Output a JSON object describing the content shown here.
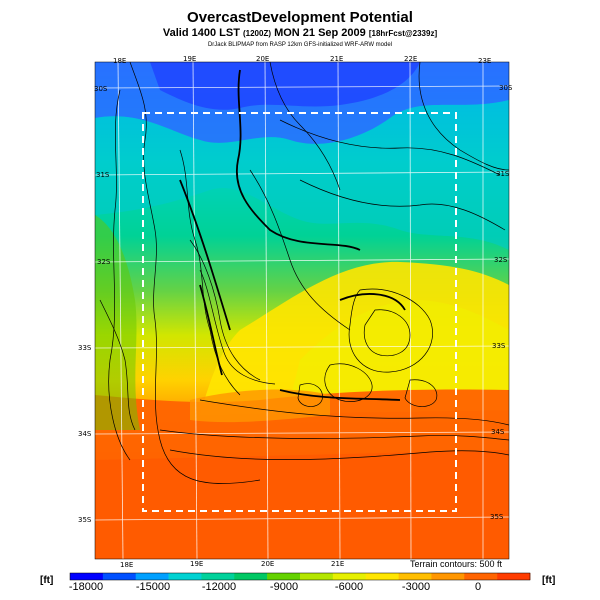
{
  "title": "OvercastDevelopment Potential",
  "subtitle_main": "Valid 1400 LST",
  "subtitle_small": "(1200Z)",
  "subtitle_date": "MON 21 Sep 2009",
  "subtitle_fcst": "[18hrFcst@2339z]",
  "credit": "DrJack BLIPMAP from RASP 12km GFS-initialized WRF-ARW model",
  "longitudes_top": [
    "18E",
    "19E",
    "20E",
    "21E",
    "22E",
    "23E"
  ],
  "longitudes_bottom": [
    "18E",
    "19E",
    "20E",
    "21E"
  ],
  "latitudes_left": [
    "30S",
    "31S",
    "32S",
    "33S",
    "34S",
    "35S"
  ],
  "latitudes_right": [
    "30S",
    "31S",
    "32S",
    "33S",
    "34S",
    "35S"
  ],
  "terrain_note": "Terrain contours: 500 ft",
  "unit_left": "[ft]",
  "unit_right": "[ft]",
  "colorbar": {
    "ticks": [
      "-18000",
      "-15000",
      "-12000",
      "-9000",
      "-6000",
      "-3000",
      "0"
    ],
    "colors": [
      "#0000ff",
      "#0050ff",
      "#00a0ff",
      "#00d2d2",
      "#00d29b",
      "#00c864",
      "#64d200",
      "#b4e600",
      "#e6f000",
      "#ffe600",
      "#ffbe00",
      "#ff9600",
      "#ff6400",
      "#ff3c00"
    ]
  }
}
